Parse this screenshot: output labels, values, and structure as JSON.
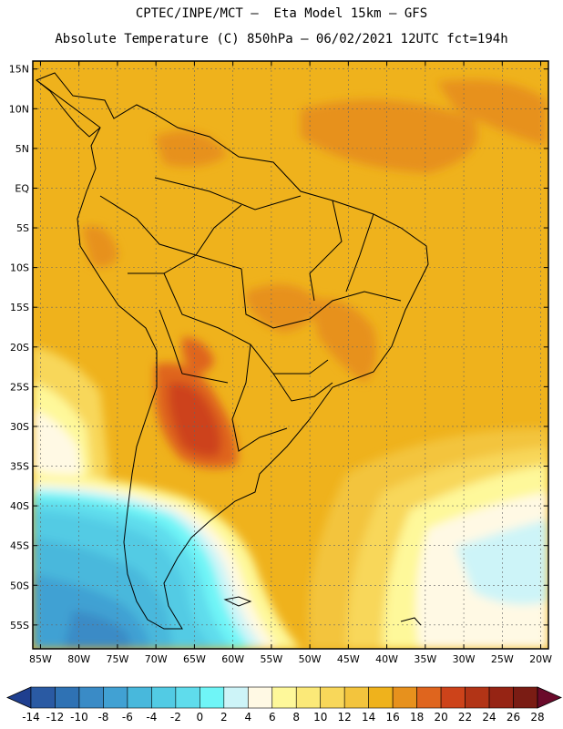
{
  "header": {
    "line1": "CPTEC/INPE/MCT –  Eta Model 15km – GFS",
    "line2": "Absolute Temperature (C) 850hPa – 06/02/2021 12UTC fct=194h"
  },
  "map": {
    "lon_range": [
      -86,
      -19
    ],
    "lat_range": [
      -58,
      16
    ],
    "lat_ticks": [
      {
        "value": 15,
        "label": "15N"
      },
      {
        "value": 10,
        "label": "10N"
      },
      {
        "value": 5,
        "label": "5N"
      },
      {
        "value": 0,
        "label": "EQ"
      },
      {
        "value": -5,
        "label": "5S"
      },
      {
        "value": -10,
        "label": "10S"
      },
      {
        "value": -15,
        "label": "15S"
      },
      {
        "value": -20,
        "label": "20S"
      },
      {
        "value": -25,
        "label": "25S"
      },
      {
        "value": -30,
        "label": "30S"
      },
      {
        "value": -35,
        "label": "35S"
      },
      {
        "value": -40,
        "label": "40S"
      },
      {
        "value": -45,
        "label": "45S"
      },
      {
        "value": -50,
        "label": "50S"
      },
      {
        "value": -55,
        "label": "55S"
      }
    ],
    "lon_ticks": [
      {
        "value": -85,
        "label": "85W"
      },
      {
        "value": -80,
        "label": "80W"
      },
      {
        "value": -75,
        "label": "75W"
      },
      {
        "value": -70,
        "label": "70W"
      },
      {
        "value": -65,
        "label": "65W"
      },
      {
        "value": -60,
        "label": "60W"
      },
      {
        "value": -55,
        "label": "55W"
      },
      {
        "value": -50,
        "label": "50W"
      },
      {
        "value": -45,
        "label": "45W"
      },
      {
        "value": -40,
        "label": "40W"
      },
      {
        "value": -35,
        "label": "35W"
      },
      {
        "value": -30,
        "label": "30W"
      },
      {
        "value": -25,
        "label": "25W"
      },
      {
        "value": -20,
        "label": "20W"
      }
    ]
  },
  "colorbar": {
    "labels": [
      "-14",
      "-12",
      "-10",
      "-8",
      "-6",
      "-4",
      "-2",
      "0",
      "2",
      "4",
      "6",
      "8",
      "10",
      "12",
      "14",
      "16",
      "18",
      "20",
      "22",
      "24",
      "26",
      "28"
    ],
    "colors": [
      "#1f3f8f",
      "#2a5aa3",
      "#2f72b4",
      "#3a8bc6",
      "#41a1d3",
      "#48b8dc",
      "#52cbe4",
      "#5fdcec",
      "#6ff5f7",
      "#cdf4f8",
      "#fff9e4",
      "#fef89a",
      "#fbe978",
      "#f8d75a",
      "#f3c43d",
      "#efb21c",
      "#e7911d",
      "#df651e",
      "#cd431a",
      "#b23416",
      "#962414",
      "#7a1c14",
      "#6a0a2a"
    ]
  }
}
